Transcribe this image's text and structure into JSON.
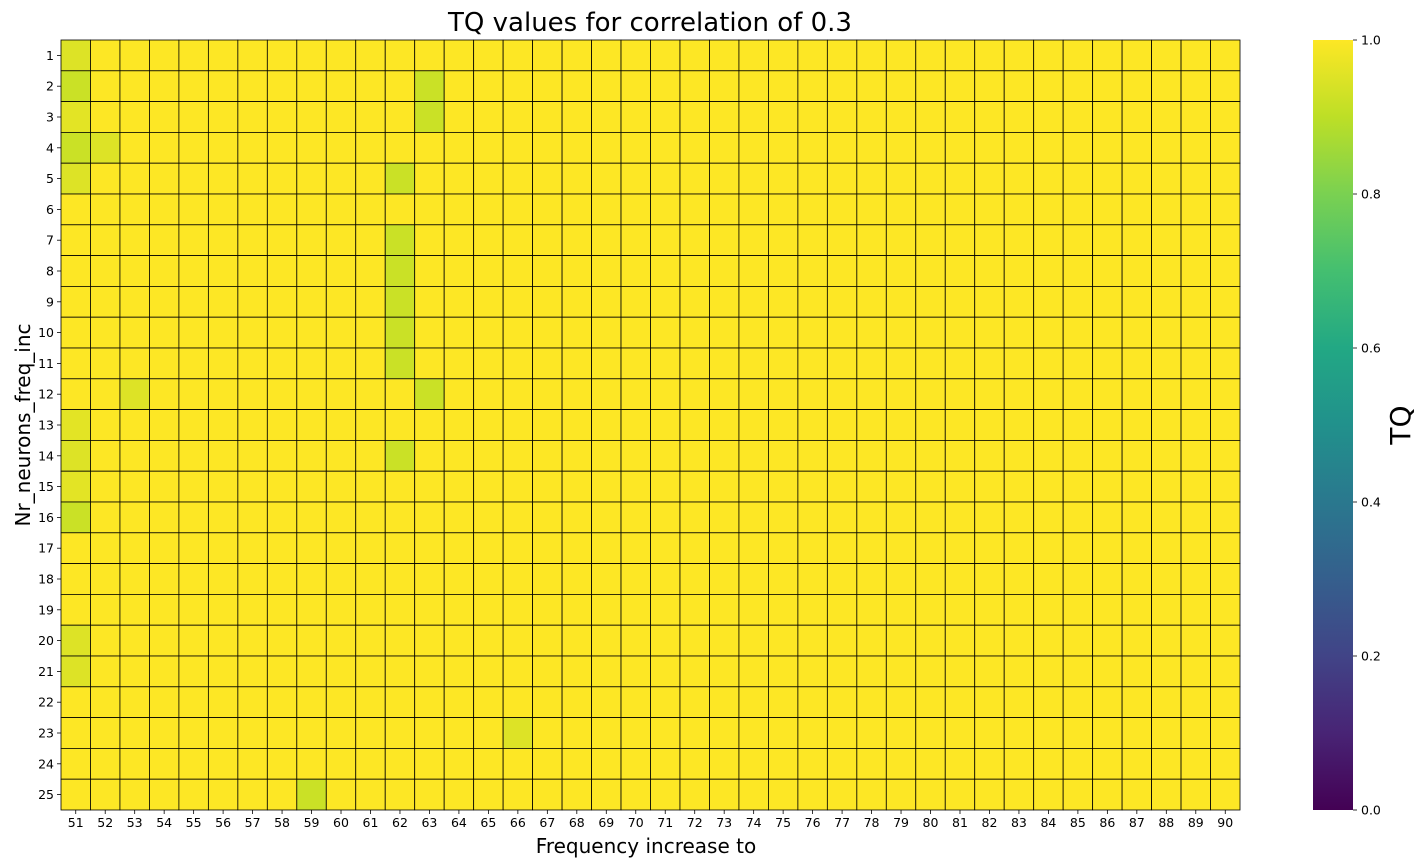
{
  "chart_data": {
    "type": "heatmap",
    "title": "TQ values for correlation of 0.3",
    "xlabel": "Frequency increase to",
    "ylabel": "Nr_neurons_freq_inc",
    "colorbar_label": "TQ",
    "colormap": "viridis",
    "vmin": 0.0,
    "vmax": 1.0,
    "colorbar_ticks": [
      "0.0",
      "0.2",
      "0.4",
      "0.6",
      "0.8",
      "1.0"
    ],
    "x_categories": [
      "51",
      "52",
      "53",
      "54",
      "55",
      "56",
      "57",
      "58",
      "59",
      "60",
      "61",
      "62",
      "63",
      "64",
      "65",
      "66",
      "67",
      "68",
      "69",
      "70",
      "71",
      "72",
      "73",
      "74",
      "75",
      "76",
      "77",
      "78",
      "79",
      "80",
      "81",
      "82",
      "83",
      "84",
      "85",
      "86",
      "87",
      "88",
      "89",
      "90"
    ],
    "y_categories": [
      "1",
      "2",
      "3",
      "4",
      "5",
      "6",
      "7",
      "8",
      "9",
      "10",
      "11",
      "12",
      "13",
      "14",
      "15",
      "16",
      "17",
      "18",
      "19",
      "20",
      "21",
      "22",
      "23",
      "24",
      "25"
    ],
    "default_value": 1.0,
    "cells": [
      {
        "x": "51",
        "y": "1",
        "value": 0.95
      },
      {
        "x": "51",
        "y": "2",
        "value": 0.92
      },
      {
        "x": "63",
        "y": "2",
        "value": 0.92
      },
      {
        "x": "51",
        "y": "3",
        "value": 0.96
      },
      {
        "x": "63",
        "y": "3",
        "value": 0.92
      },
      {
        "x": "51",
        "y": "4",
        "value": 0.92
      },
      {
        "x": "52",
        "y": "4",
        "value": 0.95
      },
      {
        "x": "51",
        "y": "5",
        "value": 0.95
      },
      {
        "x": "62",
        "y": "5",
        "value": 0.92
      },
      {
        "x": "62",
        "y": "7",
        "value": 0.92
      },
      {
        "x": "62",
        "y": "8",
        "value": 0.92
      },
      {
        "x": "62",
        "y": "9",
        "value": 0.92
      },
      {
        "x": "62",
        "y": "10",
        "value": 0.92
      },
      {
        "x": "62",
        "y": "11",
        "value": 0.92
      },
      {
        "x": "53",
        "y": "12",
        "value": 0.95
      },
      {
        "x": "63",
        "y": "12",
        "value": 0.92
      },
      {
        "x": "51",
        "y": "13",
        "value": 0.96
      },
      {
        "x": "51",
        "y": "14",
        "value": 0.95
      },
      {
        "x": "62",
        "y": "14",
        "value": 0.92
      },
      {
        "x": "51",
        "y": "15",
        "value": 0.96
      },
      {
        "x": "51",
        "y": "16",
        "value": 0.92
      },
      {
        "x": "51",
        "y": "20",
        "value": 0.95
      },
      {
        "x": "51",
        "y": "21",
        "value": 0.95
      },
      {
        "x": "66",
        "y": "23",
        "value": 0.95
      },
      {
        "x": "59",
        "y": "25",
        "value": 0.92
      }
    ]
  }
}
